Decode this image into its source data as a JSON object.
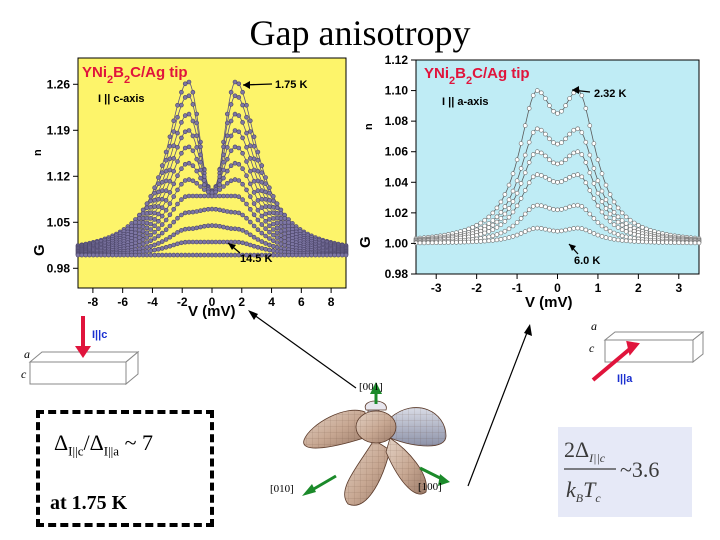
{
  "slide": {
    "title": "Gap anisotropy",
    "ratio_line": "ΔI||c/ΔI||a ~ 7",
    "ratio_parts": {
      "delta1": "Δ",
      "sub1": "I||c",
      "slash": "/",
      "delta2": "Δ",
      "sub2": "I||a",
      "tail": " ~ 7"
    },
    "temperature_text": "at 1.75 K",
    "formula": {
      "numerator": "2Δ",
      "numerator_sub": "I||c",
      "approx": "~3.6",
      "denominator": "k",
      "denominator_sub1": "B",
      "denominator_mid": "T",
      "denominator_sub2": "c"
    },
    "geometry": {
      "label_001": "[001]",
      "label_010": "[010]",
      "label_100": "[100]"
    }
  },
  "chart_data": [
    {
      "type": "line",
      "title": "YNi2B2C/Ag tip",
      "subtitle": "I || c-axis",
      "xlabel": "V (mV)",
      "ylabel": "G",
      "ylabel_sub": "n",
      "xlim": [
        -9,
        9
      ],
      "ylim": [
        0.95,
        1.3
      ],
      "xticks": [
        "-8",
        "-6",
        "-4",
        "-2",
        "0",
        "2",
        "4",
        "6",
        "8"
      ],
      "yticks": [
        "0.98",
        "1.05",
        "1.12",
        "1.19",
        "1.26"
      ],
      "background": "#fdf46a",
      "marker_color": "#7d76a4",
      "annotations": {
        "low_T": "1.75 K",
        "high_T": "14.5 K"
      },
      "inset": {
        "current_label": "I||c",
        "axis_a": "a",
        "axis_c": "c"
      },
      "series_model": {
        "description": "Andreev reflection conductance, one curve per temperature from 1.75 K (top) to 14.5 K (bottom)",
        "peak_positions_mV": [
          -1.6,
          1.6
        ],
        "peak_heights": [
          1.264,
          1.243,
          1.215,
          1.19,
          1.165,
          1.14,
          1.115,
          1.09,
          1.065,
          1.04,
          1.02,
          1.0
        ],
        "zero_bias_values": [
          1.09,
          1.095,
          1.097,
          1.098,
          1.098,
          1.097,
          1.095,
          1.09,
          1.07,
          1.045,
          1.02,
          1.0
        ]
      }
    },
    {
      "type": "line",
      "title": "YNi2B2C/Ag tip",
      "subtitle": "I || a-axis",
      "xlabel": "V (mV)",
      "ylabel": "G",
      "ylabel_sub": "n",
      "xlim": [
        -3.5,
        3.5
      ],
      "ylim": [
        0.98,
        1.12
      ],
      "xticks": [
        "-3",
        "-2",
        "-1",
        "0",
        "1",
        "2",
        "3"
      ],
      "yticks": [
        "0.98",
        "1.00",
        "1.02",
        "1.04",
        "1.06",
        "1.08",
        "1.10",
        "1.12"
      ],
      "background": "#bfecf5",
      "marker_color": "#ffffff",
      "annotations": {
        "low_T": "2.32 K",
        "high_T": "6.0 K"
      },
      "inset": {
        "current_label": "I||a",
        "axis_a": "a",
        "axis_c": "c"
      },
      "series_model": {
        "description": "Andreev reflection conductance, one curve per temperature from 2.32 K (top) to 6.0 K (bottom)",
        "peak_positions_mV": [
          -0.5,
          0.5
        ],
        "peak_heights": [
          1.1,
          1.075,
          1.06,
          1.045,
          1.025,
          1.01
        ],
        "zero_bias_values": [
          1.085,
          1.065,
          1.052,
          1.04,
          1.022,
          1.008
        ]
      }
    }
  ]
}
